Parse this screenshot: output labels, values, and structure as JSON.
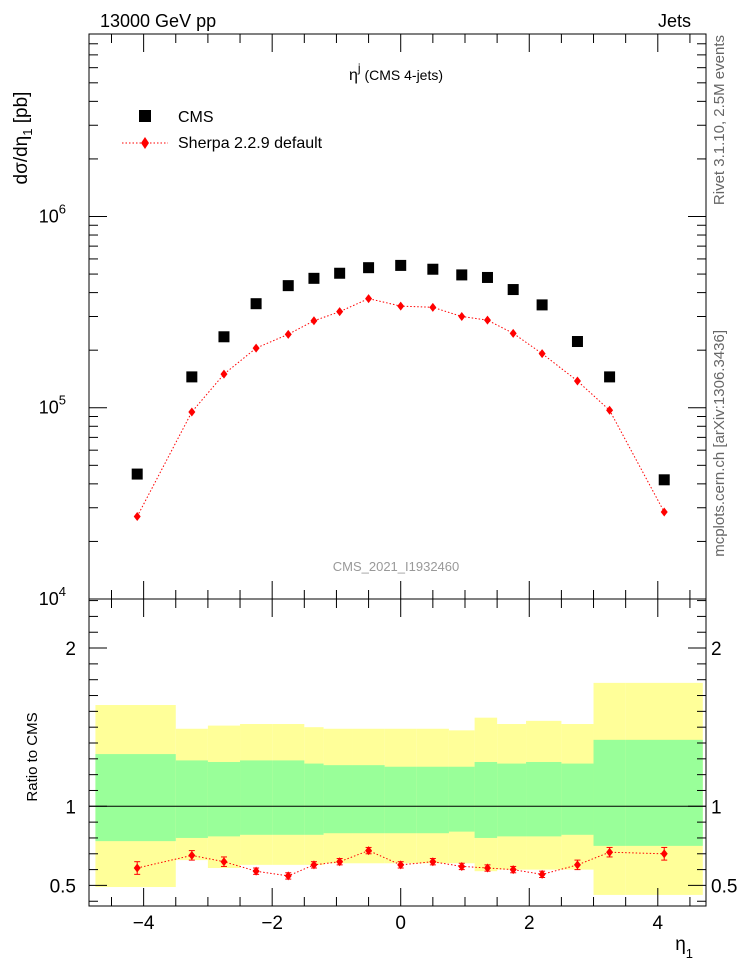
{
  "header": {
    "process": "13000 GeV pp",
    "category": "Jets"
  },
  "side_labels": {
    "generator": "Rivet 3.1.10,  2.5M events",
    "source": "mcplots.cern.ch [arXiv:1306.3436]"
  },
  "chart_data": [
    {
      "type": "scatter",
      "panel": "main",
      "title": "η^j (CMS 4-jets)",
      "watermark": "CMS_2021_I1932460",
      "ylabel": "dσ/dη_1 [pb]",
      "xlabel": "",
      "yscale": "log",
      "xlim": [
        -4.85,
        4.75
      ],
      "ylim": [
        10000,
        9000000
      ],
      "y_tick_labels": [
        "10^4",
        "10^5",
        "10^6"
      ],
      "legend_position": "top-left",
      "x": [
        -4.1,
        -3.25,
        -2.75,
        -2.25,
        -1.75,
        -1.35,
        -0.95,
        -0.5,
        0.0,
        0.5,
        0.95,
        1.35,
        1.75,
        2.2,
        2.75,
        3.25,
        4.1
      ],
      "series": [
        {
          "name": "CMS",
          "marker": "square",
          "color": "#000000",
          "values": [
            45000,
            145000,
            235000,
            350000,
            435000,
            475000,
            505000,
            540000,
            555000,
            530000,
            495000,
            480000,
            415000,
            345000,
            222000,
            145000,
            42000
          ]
        },
        {
          "name": "Sherpa 2.2.9 default",
          "marker": "diamond",
          "line": "dotted",
          "color": "#ff0000",
          "values": [
            27000,
            95000,
            150000,
            205000,
            242000,
            285000,
            318000,
            372000,
            340000,
            335000,
            300000,
            287000,
            245000,
            192000,
            138000,
            97000,
            28500
          ]
        }
      ]
    },
    {
      "type": "line",
      "panel": "ratio",
      "ylabel": "Ratio to CMS",
      "xlabel": "η_1",
      "xlim": [
        -4.85,
        4.75
      ],
      "ylim": [
        0.37,
        2.31
      ],
      "x_tick_labels": [
        "−4",
        "−2",
        "0",
        "2",
        "4"
      ],
      "y_tick_labels": [
        "0.5",
        "1",
        "2"
      ],
      "bands": {
        "edges": [
          -4.75,
          -3.5,
          -3.0,
          -2.5,
          -2.0,
          -1.5,
          -1.2,
          -0.75,
          -0.25,
          0.25,
          0.75,
          1.15,
          1.5,
          1.95,
          2.5,
          3.0,
          3.5,
          4.7
        ],
        "yellow": {
          "color": "#ffff99",
          "upper": [
            1.64,
            1.49,
            1.51,
            1.52,
            1.52,
            1.5,
            1.49,
            1.49,
            1.49,
            1.49,
            1.48,
            1.56,
            1.52,
            1.54,
            1.52,
            1.78,
            1.78
          ],
          "lower": [
            0.49,
            0.66,
            0.61,
            0.63,
            0.63,
            0.63,
            0.64,
            0.64,
            0.64,
            0.64,
            0.64,
            0.59,
            0.6,
            0.6,
            0.6,
            0.44,
            0.44
          ]
        },
        "green": {
          "color": "#99ff99",
          "upper": [
            1.33,
            1.29,
            1.28,
            1.29,
            1.29,
            1.27,
            1.26,
            1.26,
            1.25,
            1.25,
            1.25,
            1.28,
            1.27,
            1.28,
            1.27,
            1.42,
            1.42
          ],
          "lower": [
            0.78,
            0.8,
            0.81,
            0.82,
            0.82,
            0.82,
            0.83,
            0.83,
            0.83,
            0.83,
            0.84,
            0.8,
            0.81,
            0.81,
            0.82,
            0.75,
            0.75
          ]
        }
      },
      "series": [
        {
          "name": "Sherpa 2.2.9 default",
          "color": "#ff0000",
          "values": [
            0.61,
            0.69,
            0.65,
            0.59,
            0.56,
            0.63,
            0.65,
            0.72,
            0.63,
            0.65,
            0.62,
            0.61,
            0.6,
            0.57,
            0.63,
            0.71,
            0.7
          ],
          "errors": [
            0.04,
            0.03,
            0.03,
            0.02,
            0.02,
            0.02,
            0.02,
            0.02,
            0.02,
            0.02,
            0.02,
            0.02,
            0.02,
            0.02,
            0.03,
            0.03,
            0.04
          ]
        }
      ]
    }
  ]
}
